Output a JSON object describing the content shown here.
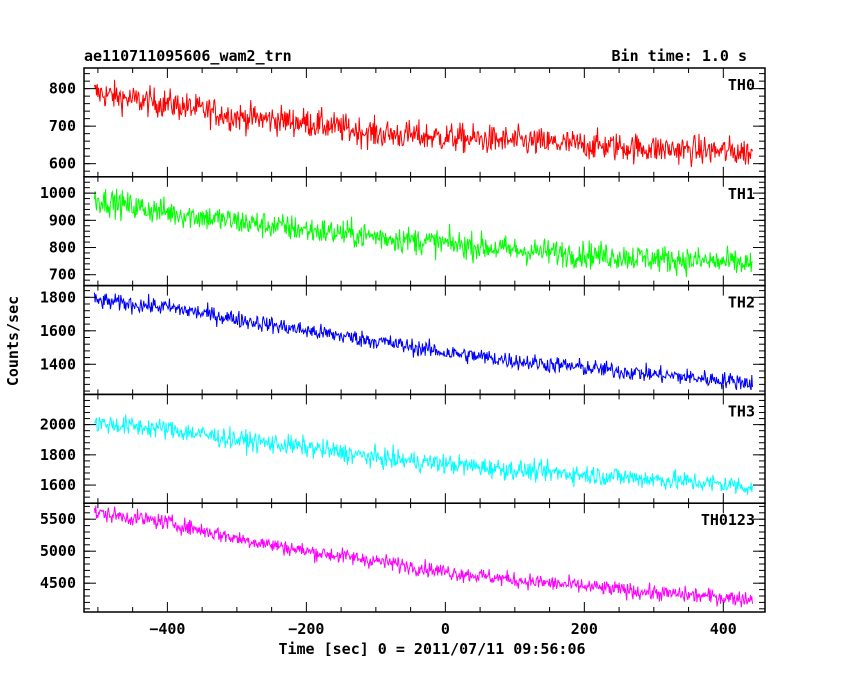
{
  "header": {
    "title": "ae110711095606_wam2_trn",
    "bin_time": "Bin time: 1.0 s"
  },
  "chart_data": {
    "type": "line",
    "xlabel": "Time [sec] 0 = 2011/07/11 09:56:06",
    "ylabel": "Counts/sec",
    "xlim": [
      -520,
      460
    ],
    "xticks": [
      -400,
      -200,
      0,
      200,
      400
    ],
    "xtick_labels": [
      "−400",
      "−200",
      "0",
      "200",
      "400"
    ],
    "x_range": [
      -505,
      442
    ],
    "grid": false,
    "panels": [
      {
        "name": "TH0",
        "color": "#ff0000",
        "ylim": [
          565,
          855
        ],
        "yticks": [
          600,
          700,
          800
        ],
        "trend": [
          [
            -505,
            790
          ],
          [
            -450,
            770
          ],
          [
            -400,
            760
          ],
          [
            -300,
            725
          ],
          [
            -200,
            710
          ],
          [
            -100,
            680
          ],
          [
            0,
            670
          ],
          [
            100,
            660
          ],
          [
            200,
            650
          ],
          [
            300,
            640
          ],
          [
            442,
            630
          ]
        ],
        "noise": 35
      },
      {
        "name": "TH1",
        "color": "#00ff00",
        "ylim": [
          660,
          1060
        ],
        "yticks": [
          700,
          800,
          900,
          1000
        ],
        "trend": [
          [
            -505,
            980
          ],
          [
            -450,
            950
          ],
          [
            -400,
            930
          ],
          [
            -300,
            895
          ],
          [
            -200,
            865
          ],
          [
            -100,
            840
          ],
          [
            0,
            815
          ],
          [
            100,
            790
          ],
          [
            200,
            775
          ],
          [
            300,
            760
          ],
          [
            442,
            740
          ]
        ],
        "noise": 45
      },
      {
        "name": "TH2",
        "color": "#0000ff",
        "ylim": [
          1220,
          1870
        ],
        "yticks": [
          1400,
          1600,
          1800
        ],
        "trend": [
          [
            -505,
            1780
          ],
          [
            -400,
            1740
          ],
          [
            -300,
            1670
          ],
          [
            -200,
            1600
          ],
          [
            -100,
            1540
          ],
          [
            0,
            1470
          ],
          [
            100,
            1420
          ],
          [
            200,
            1380
          ],
          [
            300,
            1340
          ],
          [
            442,
            1290
          ]
        ],
        "noise": 45
      },
      {
        "name": "TH3",
        "color": "#00ffff",
        "ylim": [
          1480,
          2200
        ],
        "yticks": [
          1600,
          1800,
          2000
        ],
        "trend": [
          [
            -505,
            2010
          ],
          [
            -400,
            1970
          ],
          [
            -300,
            1900
          ],
          [
            -200,
            1850
          ],
          [
            -100,
            1780
          ],
          [
            0,
            1740
          ],
          [
            100,
            1700
          ],
          [
            200,
            1670
          ],
          [
            300,
            1640
          ],
          [
            442,
            1590
          ]
        ],
        "noise": 60
      },
      {
        "name": "TH0123",
        "color": "#ff00ff",
        "ylim": [
          4050,
          5750
        ],
        "yticks": [
          4500,
          5000,
          5500
        ],
        "trend": [
          [
            -505,
            5600
          ],
          [
            -400,
            5450
          ],
          [
            -300,
            5200
          ],
          [
            -200,
            5000
          ],
          [
            -100,
            4850
          ],
          [
            0,
            4680
          ],
          [
            100,
            4550
          ],
          [
            200,
            4450
          ],
          [
            300,
            4350
          ],
          [
            442,
            4250
          ]
        ],
        "noise": 110
      }
    ]
  }
}
